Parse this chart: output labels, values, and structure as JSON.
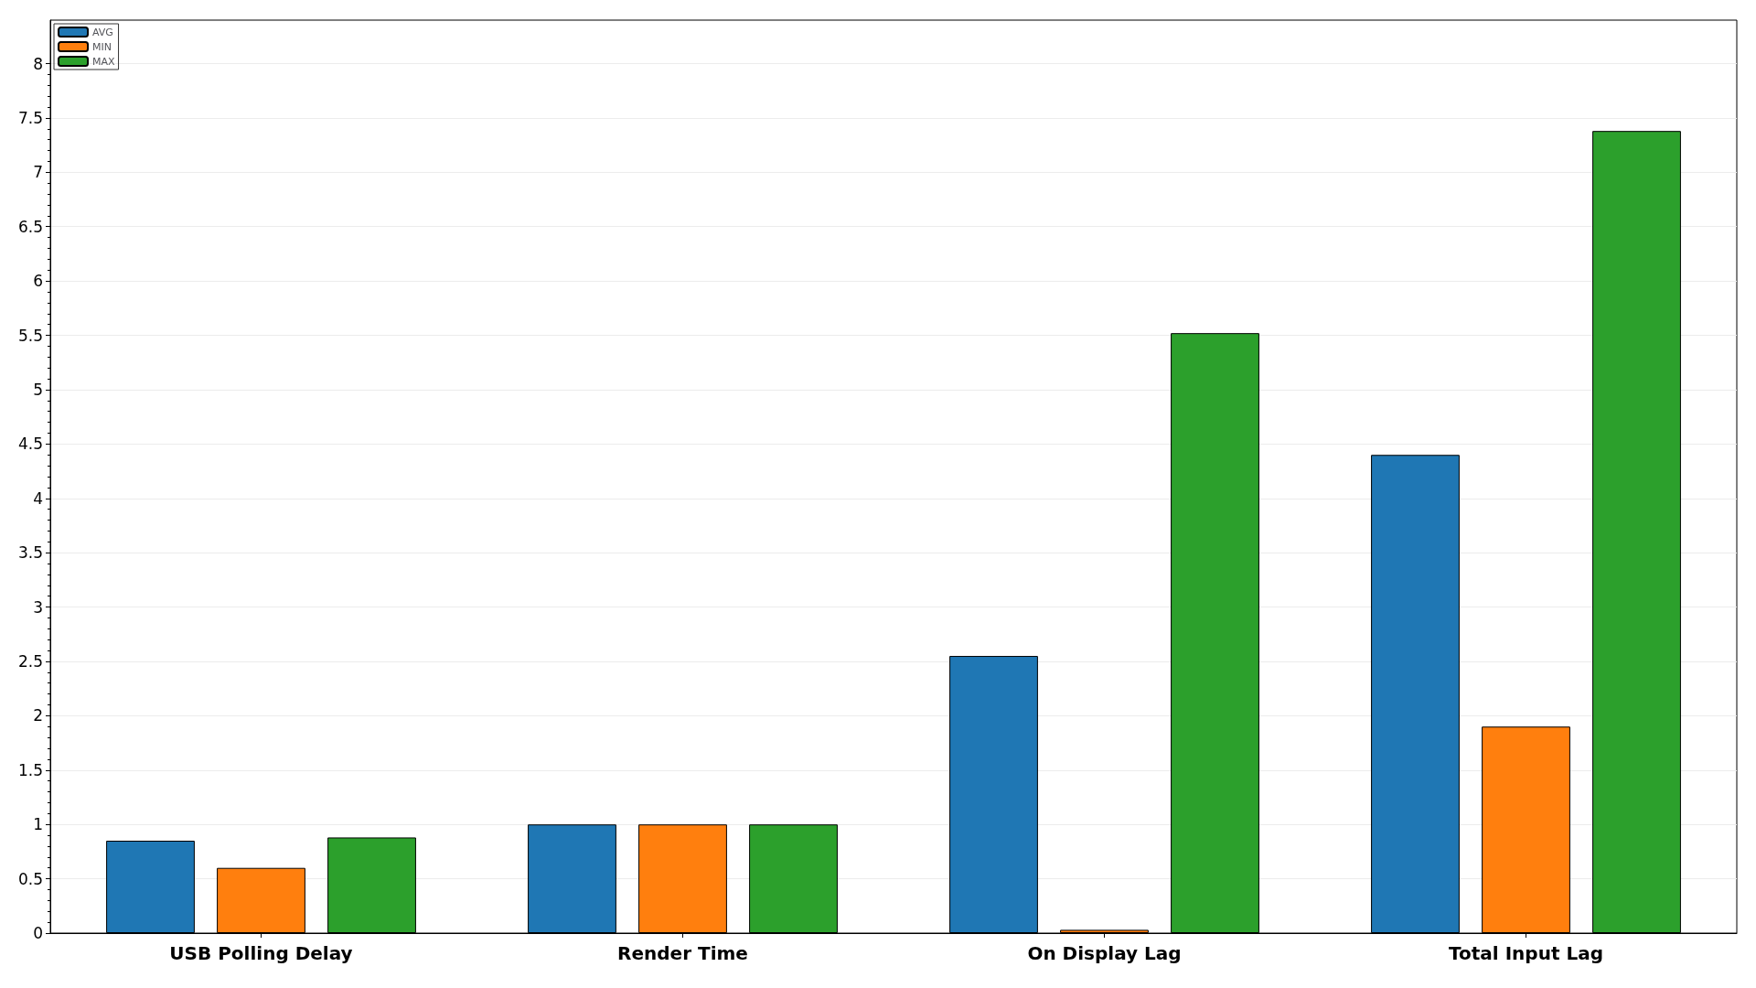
{
  "chart_data": {
    "type": "bar",
    "categories": [
      "USB Polling Delay",
      "Render Time",
      "On Display Lag",
      "Total Input Lag"
    ],
    "series": [
      {
        "name": "AVG",
        "color": "#1f77b4",
        "values": [
          0.85,
          1,
          2.55,
          4.4
        ]
      },
      {
        "name": "MIN",
        "color": "#ff7f0e",
        "values": [
          0.6,
          1,
          0.03,
          1.9
        ]
      },
      {
        "name": "MAX",
        "color": "#2ca02c",
        "values": [
          0.88,
          1,
          5.52,
          7.38
        ]
      }
    ],
    "ylim": [
      0,
      8.4
    ],
    "yticks": [
      0,
      0.5,
      1,
      1.5,
      2,
      2.5,
      3,
      3.5,
      4,
      4.5,
      5,
      5.5,
      6,
      6.5,
      7,
      7.5,
      8
    ],
    "grid": "y",
    "legend": "top left"
  }
}
